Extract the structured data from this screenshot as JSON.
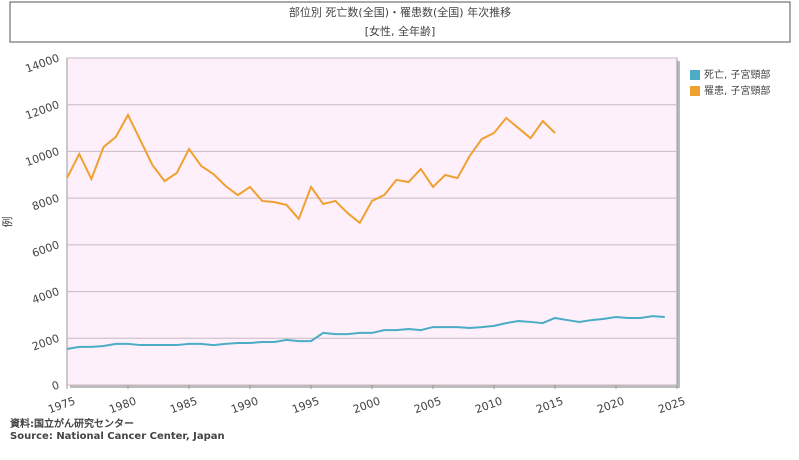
{
  "chart_data": {
    "type": "line",
    "title": "部位別 死亡数(全国)・罹患数(全国) 年次推移",
    "subtitle": "[女性, 全年齢]",
    "y_label": "例",
    "source": [
      "資料:国立がん研究センター",
      "Source: National Cancer Center, Japan"
    ],
    "xlim": [
      1975,
      2025
    ],
    "xticks": [
      1975,
      1980,
      1985,
      1990,
      1995,
      2000,
      2005,
      2010,
      2015,
      2020,
      2025
    ],
    "ylim": [
      0,
      14000
    ],
    "yticks": [
      0,
      2000,
      4000,
      6000,
      8000,
      10000,
      12000,
      14000
    ],
    "grid": true,
    "legend": "right",
    "series": [
      {
        "name": "死亡, 子宮頸部",
        "color": "#4bacc6",
        "x": [
          1975,
          1976,
          1977,
          1978,
          1979,
          1980,
          1981,
          1982,
          1983,
          1984,
          1985,
          1986,
          1987,
          1988,
          1989,
          1990,
          1991,
          1992,
          1993,
          1994,
          1995,
          1996,
          1997,
          1998,
          1999,
          2000,
          2001,
          2002,
          2003,
          2004,
          2005,
          2006,
          2007,
          2008,
          2009,
          2010,
          2011,
          2012,
          2013,
          2014,
          2015,
          2016,
          2017,
          2018,
          2019,
          2020,
          2021,
          2022,
          2023,
          2024
        ],
        "values": [
          1540,
          1630,
          1630,
          1670,
          1760,
          1760,
          1710,
          1710,
          1710,
          1710,
          1760,
          1760,
          1710,
          1760,
          1800,
          1800,
          1840,
          1840,
          1930,
          1880,
          1880,
          2230,
          2180,
          2180,
          2230,
          2230,
          2350,
          2350,
          2400,
          2350,
          2480,
          2480,
          2480,
          2440,
          2480,
          2530,
          2650,
          2740,
          2700,
          2650,
          2870,
          2780,
          2700,
          2780,
          2830,
          2910,
          2870,
          2870,
          2950,
          2910
        ]
      },
      {
        "name": "罹患, 子宮頸部",
        "color": "#f0a030",
        "x": [
          1975,
          1976,
          1977,
          1978,
          1979,
          1980,
          1981,
          1982,
          1983,
          1984,
          1985,
          1986,
          1987,
          1988,
          1989,
          1990,
          1991,
          1992,
          1993,
          1994,
          1995,
          1996,
          1997,
          1998,
          1999,
          2000,
          2001,
          2002,
          2003,
          2004,
          2005,
          2006,
          2007,
          2008,
          2009,
          2010,
          2011,
          2012,
          2013,
          2014,
          2015
        ],
        "values": [
          8860,
          9890,
          8820,
          10190,
          10620,
          11560,
          10490,
          9420,
          8730,
          9080,
          10100,
          9380,
          9030,
          8520,
          8130,
          8480,
          7880,
          7830,
          7710,
          7110,
          8480,
          7750,
          7880,
          7360,
          6940,
          7880,
          8130,
          8780,
          8690,
          9250,
          8480,
          8990,
          8860,
          9800,
          10530,
          10790,
          11430,
          11000,
          10570,
          11300,
          10790
        ]
      }
    ]
  }
}
